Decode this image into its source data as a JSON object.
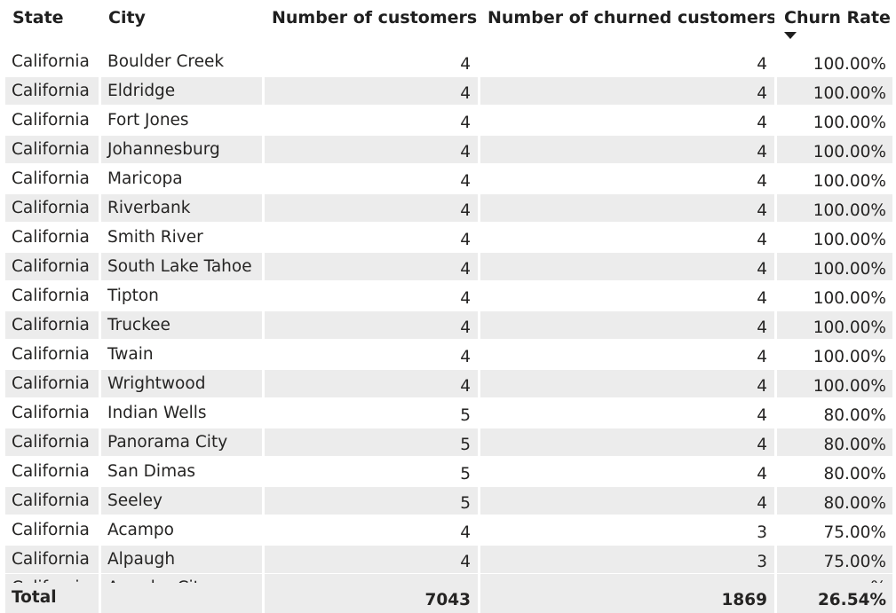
{
  "table": {
    "headers": {
      "state": "State",
      "city": "City",
      "customers": "Number of customers",
      "churned": "Number of churned customers",
      "rate": "Churn Rate"
    },
    "sort_icon": "sort-descending-icon",
    "rows": [
      {
        "state": "California",
        "city": "Boulder Creek",
        "customers": "4",
        "churned": "4",
        "rate": "100.00%"
      },
      {
        "state": "California",
        "city": "Eldridge",
        "customers": "4",
        "churned": "4",
        "rate": "100.00%"
      },
      {
        "state": "California",
        "city": "Fort Jones",
        "customers": "4",
        "churned": "4",
        "rate": "100.00%"
      },
      {
        "state": "California",
        "city": "Johannesburg",
        "customers": "4",
        "churned": "4",
        "rate": "100.00%"
      },
      {
        "state": "California",
        "city": "Maricopa",
        "customers": "4",
        "churned": "4",
        "rate": "100.00%"
      },
      {
        "state": "California",
        "city": "Riverbank",
        "customers": "4",
        "churned": "4",
        "rate": "100.00%"
      },
      {
        "state": "California",
        "city": "Smith River",
        "customers": "4",
        "churned": "4",
        "rate": "100.00%"
      },
      {
        "state": "California",
        "city": "South Lake Tahoe",
        "customers": "4",
        "churned": "4",
        "rate": "100.00%"
      },
      {
        "state": "California",
        "city": "Tipton",
        "customers": "4",
        "churned": "4",
        "rate": "100.00%"
      },
      {
        "state": "California",
        "city": "Truckee",
        "customers": "4",
        "churned": "4",
        "rate": "100.00%"
      },
      {
        "state": "California",
        "city": "Twain",
        "customers": "4",
        "churned": "4",
        "rate": "100.00%"
      },
      {
        "state": "California",
        "city": "Wrightwood",
        "customers": "4",
        "churned": "4",
        "rate": "100.00%"
      },
      {
        "state": "California",
        "city": "Indian Wells",
        "customers": "5",
        "churned": "4",
        "rate": "80.00%"
      },
      {
        "state": "California",
        "city": "Panorama City",
        "customers": "5",
        "churned": "4",
        "rate": "80.00%"
      },
      {
        "state": "California",
        "city": "San Dimas",
        "customers": "5",
        "churned": "4",
        "rate": "80.00%"
      },
      {
        "state": "California",
        "city": "Seeley",
        "customers": "5",
        "churned": "4",
        "rate": "80.00%"
      },
      {
        "state": "California",
        "city": "Acampo",
        "customers": "4",
        "churned": "3",
        "rate": "75.00%"
      },
      {
        "state": "California",
        "city": "Alpaugh",
        "customers": "4",
        "churned": "3",
        "rate": "75.00%"
      }
    ],
    "partial_row": {
      "state": "California",
      "city": "Amador City",
      "customers": "",
      "churned": "",
      "rate": "%"
    },
    "total": {
      "label": "Total",
      "customers": "7043",
      "churned": "1869",
      "rate": "26.54%"
    }
  }
}
